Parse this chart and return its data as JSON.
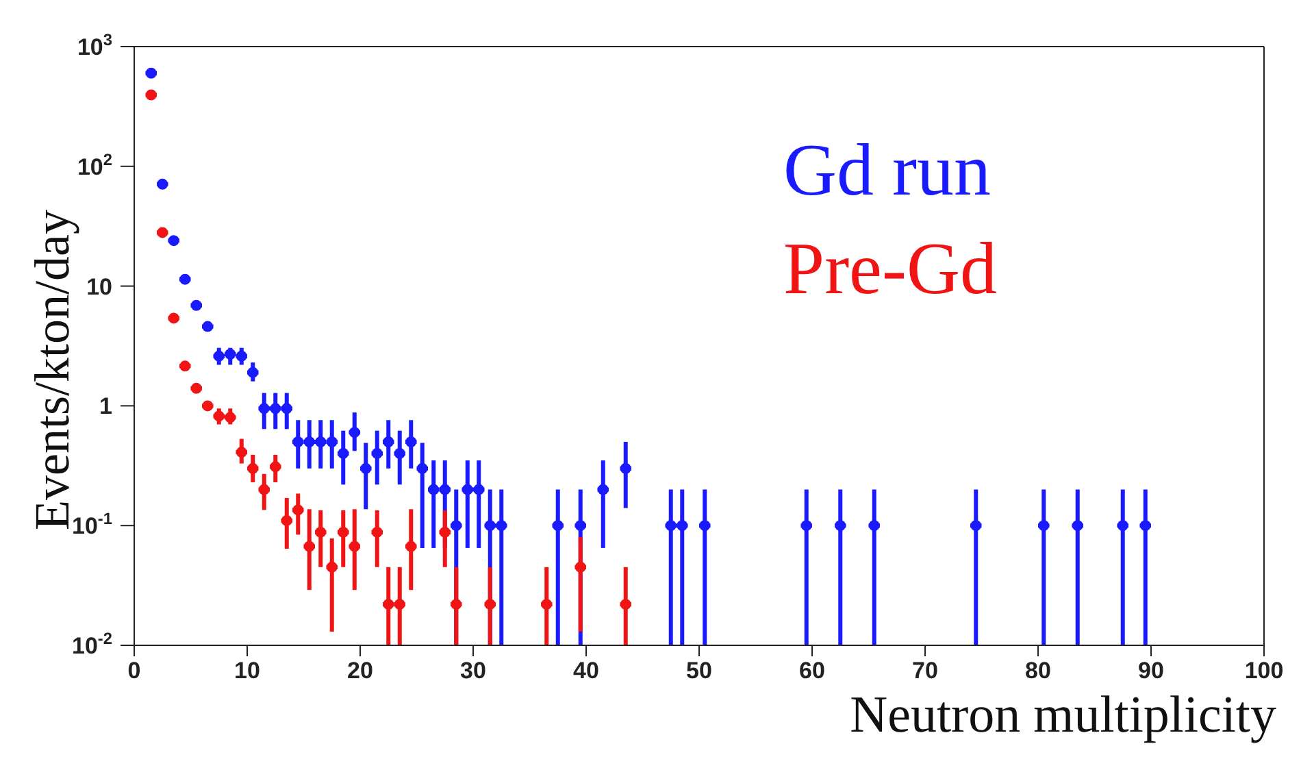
{
  "chart_data": {
    "type": "scatter",
    "xlabel": "Neutron multiplicity",
    "ylabel": "Events/kton/day",
    "xlim": [
      0,
      100
    ],
    "xticks": [
      0,
      10,
      20,
      30,
      40,
      50,
      60,
      70,
      80,
      90,
      100
    ],
    "ylim": [
      0.01,
      1000
    ],
    "yticks": [
      {
        "value": 0.01,
        "label": "10$^{-2}$"
      },
      {
        "value": 0.1,
        "label": "10$^{-1}$"
      },
      1,
      10,
      {
        "value": 100,
        "label": "10$^{2}$"
      },
      {
        "value": 1000,
        "label": "10$^{3}$"
      }
    ],
    "log": "y",
    "grid": false,
    "legend": "top right",
    "marker": "circle",
    "series": [
      {
        "name": "Gd run",
        "color": "#1a1aff",
        "x": [
          1.5,
          2.5,
          3.5,
          4.5,
          5.5,
          6.5,
          7.5,
          8.5,
          9.5,
          10.5,
          11.5,
          12.5,
          13.5,
          14.5,
          15.5,
          16.5,
          17.5,
          18.5,
          19.5,
          20.5,
          21.5,
          22.5,
          23.5,
          24.5,
          25.5,
          26.5,
          27.5,
          28.5,
          29.5,
          30.5,
          31.5,
          32.5,
          37.5,
          39.5,
          41.5,
          43.5,
          47.5,
          48.5,
          50.5,
          59.5,
          62.5,
          65.5,
          74.5,
          80.5,
          83.5,
          87.5,
          89.5
        ],
        "values": [
          600,
          71,
          24,
          11.4,
          6.9,
          4.6,
          2.6,
          2.7,
          2.6,
          1.9,
          0.95,
          0.95,
          0.95,
          0.5,
          0.5,
          0.5,
          0.5,
          0.4,
          0.6,
          0.3,
          0.4,
          0.5,
          0.4,
          0.5,
          0.3,
          0.2,
          0.2,
          0.1,
          0.2,
          0.2,
          0.1,
          0.1,
          0.1,
          0.1,
          0.2,
          0.3,
          0.1,
          0.1,
          0.1,
          0.1,
          0.1,
          0.1,
          0.1,
          0.1,
          0.1,
          0.1,
          0.1
        ],
        "errors": [
          null,
          null,
          null,
          null,
          null,
          null,
          [
            2.2,
            3.05
          ],
          [
            2.2,
            3.05
          ],
          [
            2.2,
            3.05
          ],
          [
            1.6,
            2.3
          ],
          [
            0.64,
            1.28
          ],
          [
            0.64,
            1.28
          ],
          [
            0.64,
            1.28
          ],
          [
            0.3,
            0.76
          ],
          [
            0.3,
            0.76
          ],
          [
            0.3,
            0.76
          ],
          [
            0.3,
            0.76
          ],
          [
            0.22,
            0.62
          ],
          [
            0.42,
            0.88
          ],
          [
            0.137,
            0.49
          ],
          [
            0.22,
            0.62
          ],
          [
            0.3,
            0.76
          ],
          [
            0.22,
            0.62
          ],
          [
            0.3,
            0.76
          ],
          [
            0.065,
            0.49
          ],
          [
            0.065,
            0.35
          ],
          [
            0.065,
            0.35
          ],
          [
            0.01,
            0.2
          ],
          [
            0.065,
            0.35
          ],
          [
            0.065,
            0.35
          ],
          [
            0.01,
            0.2
          ],
          [
            0.01,
            0.2
          ],
          [
            0.01,
            0.2
          ],
          [
            0.01,
            0.2
          ],
          [
            0.065,
            0.35
          ],
          [
            0.14,
            0.5
          ],
          [
            0.01,
            0.2
          ],
          [
            0.01,
            0.2
          ],
          [
            0.01,
            0.2
          ],
          [
            0.01,
            0.2
          ],
          [
            0.01,
            0.2
          ],
          [
            0.01,
            0.2
          ],
          [
            0.01,
            0.2
          ],
          [
            0.01,
            0.2
          ],
          [
            0.01,
            0.2
          ],
          [
            0.01,
            0.2
          ],
          [
            0.01,
            0.2
          ]
        ],
        "xerrors": [
          0.5,
          0.5,
          0.5,
          0.5,
          0.5,
          0.5,
          0.5,
          0.5,
          0.5,
          0.5,
          0.5,
          0.5,
          0.5,
          0.5,
          0.5,
          0.5,
          0.5,
          0.5,
          0.5,
          0.5,
          0.5,
          0.5,
          0.5,
          0.5,
          0.5,
          0.5,
          0.5,
          0.5,
          0.5,
          0.5,
          0.5,
          0.5,
          0.5,
          0.5,
          0.5,
          0.5,
          0.5,
          0.5,
          0.5,
          0.5,
          0.5,
          0.5,
          0.5,
          0.5,
          0.5,
          0.5,
          0.5
        ]
      },
      {
        "name": "Pre-Gd",
        "color": "#f01414",
        "x": [
          1.5,
          2.5,
          3.5,
          4.5,
          5.5,
          6.5,
          7.5,
          8.5,
          9.5,
          10.5,
          11.5,
          12.5,
          13.5,
          14.5,
          15.5,
          16.5,
          17.5,
          18.5,
          19.5,
          21.5,
          22.5,
          23.5,
          24.5,
          27.5,
          28.5,
          31.5,
          36.5,
          39.5,
          43.5
        ],
        "values": [
          395,
          28,
          5.4,
          2.15,
          1.4,
          1.0,
          0.82,
          0.8,
          0.41,
          0.3,
          0.2,
          0.31,
          0.11,
          0.135,
          0.067,
          0.088,
          0.045,
          0.088,
          0.067,
          0.088,
          0.022,
          0.022,
          0.067,
          0.088,
          0.022,
          0.022,
          0.022,
          0.045,
          0.022
        ],
        "errors": [
          null,
          null,
          null,
          null,
          null,
          null,
          [
            0.7,
            0.95
          ],
          [
            0.7,
            0.95
          ],
          [
            0.33,
            0.53
          ],
          [
            0.23,
            0.39
          ],
          [
            0.135,
            0.27
          ],
          [
            0.23,
            0.39
          ],
          [
            0.064,
            0.17
          ],
          [
            0.084,
            0.185
          ],
          [
            0.029,
            0.137
          ],
          [
            0.045,
            0.134
          ],
          [
            0.013,
            0.078
          ],
          [
            0.045,
            0.134
          ],
          [
            0.029,
            0.137
          ],
          [
            0.045,
            0.134
          ],
          [
            0.01,
            0.045
          ],
          [
            0.01,
            0.045
          ],
          [
            0.029,
            0.137
          ],
          [
            0.045,
            0.134
          ],
          [
            0.01,
            0.045
          ],
          [
            0.01,
            0.045
          ],
          [
            0.01,
            0.045
          ],
          [
            0.013,
            0.08
          ],
          [
            0.01,
            0.045
          ]
        ],
        "xerrors": [
          0.5,
          0.5,
          0.5,
          0.5,
          0.5,
          0.5,
          0.5,
          0.5,
          0.5,
          0.5,
          0.5,
          0.5,
          0.5,
          0.5,
          0.5,
          0.5,
          0.5,
          0.5,
          0.5,
          0.5,
          0.5,
          0.5,
          0.5,
          0.5,
          0.5,
          0.5,
          0.5,
          0.5,
          0.5
        ]
      }
    ]
  }
}
